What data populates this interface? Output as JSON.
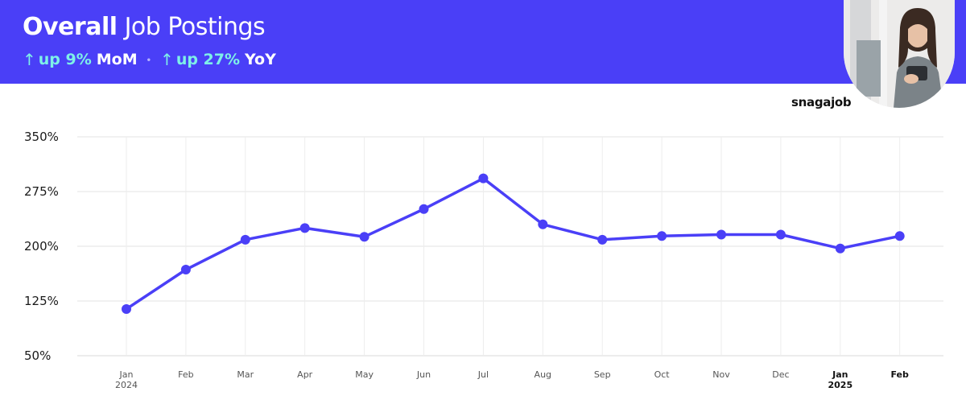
{
  "header": {
    "title_bold": "Overall",
    "title_rest": "Job Postings",
    "stats": [
      {
        "arrow": "↑",
        "value": "up 9%",
        "label": "MoM"
      },
      {
        "arrow": "↑",
        "value": "up 27%",
        "label": "YoY"
      }
    ],
    "separator": "•"
  },
  "brand": {
    "logo": "snagajob"
  },
  "colors": {
    "band": "#4a3ff7",
    "line": "#4a3ff7",
    "accent": "#7ef0e8"
  },
  "chart_data": {
    "type": "line",
    "y_ticks": [
      "350%",
      "275%",
      "200%",
      "125%",
      "50%"
    ],
    "ylim": [
      50,
      350
    ],
    "grid": true,
    "categories": [
      {
        "label": "Jan",
        "sub": "2024"
      },
      {
        "label": "Feb",
        "sub": ""
      },
      {
        "label": "Mar",
        "sub": ""
      },
      {
        "label": "Apr",
        "sub": ""
      },
      {
        "label": "May",
        "sub": ""
      },
      {
        "label": "Jun",
        "sub": ""
      },
      {
        "label": "Jul",
        "sub": ""
      },
      {
        "label": "Aug",
        "sub": ""
      },
      {
        "label": "Sep",
        "sub": ""
      },
      {
        "label": "Oct",
        "sub": ""
      },
      {
        "label": "Nov",
        "sub": ""
      },
      {
        "label": "Dec",
        "sub": ""
      },
      {
        "label": "Jan",
        "sub": "2025",
        "emphasis": true
      },
      {
        "label": "Feb",
        "sub": "",
        "emphasis": true
      }
    ],
    "series": [
      {
        "values": [
          114,
          168,
          209,
          225,
          213,
          251,
          293,
          230,
          209,
          214,
          216,
          216,
          197,
          214
        ]
      }
    ]
  }
}
